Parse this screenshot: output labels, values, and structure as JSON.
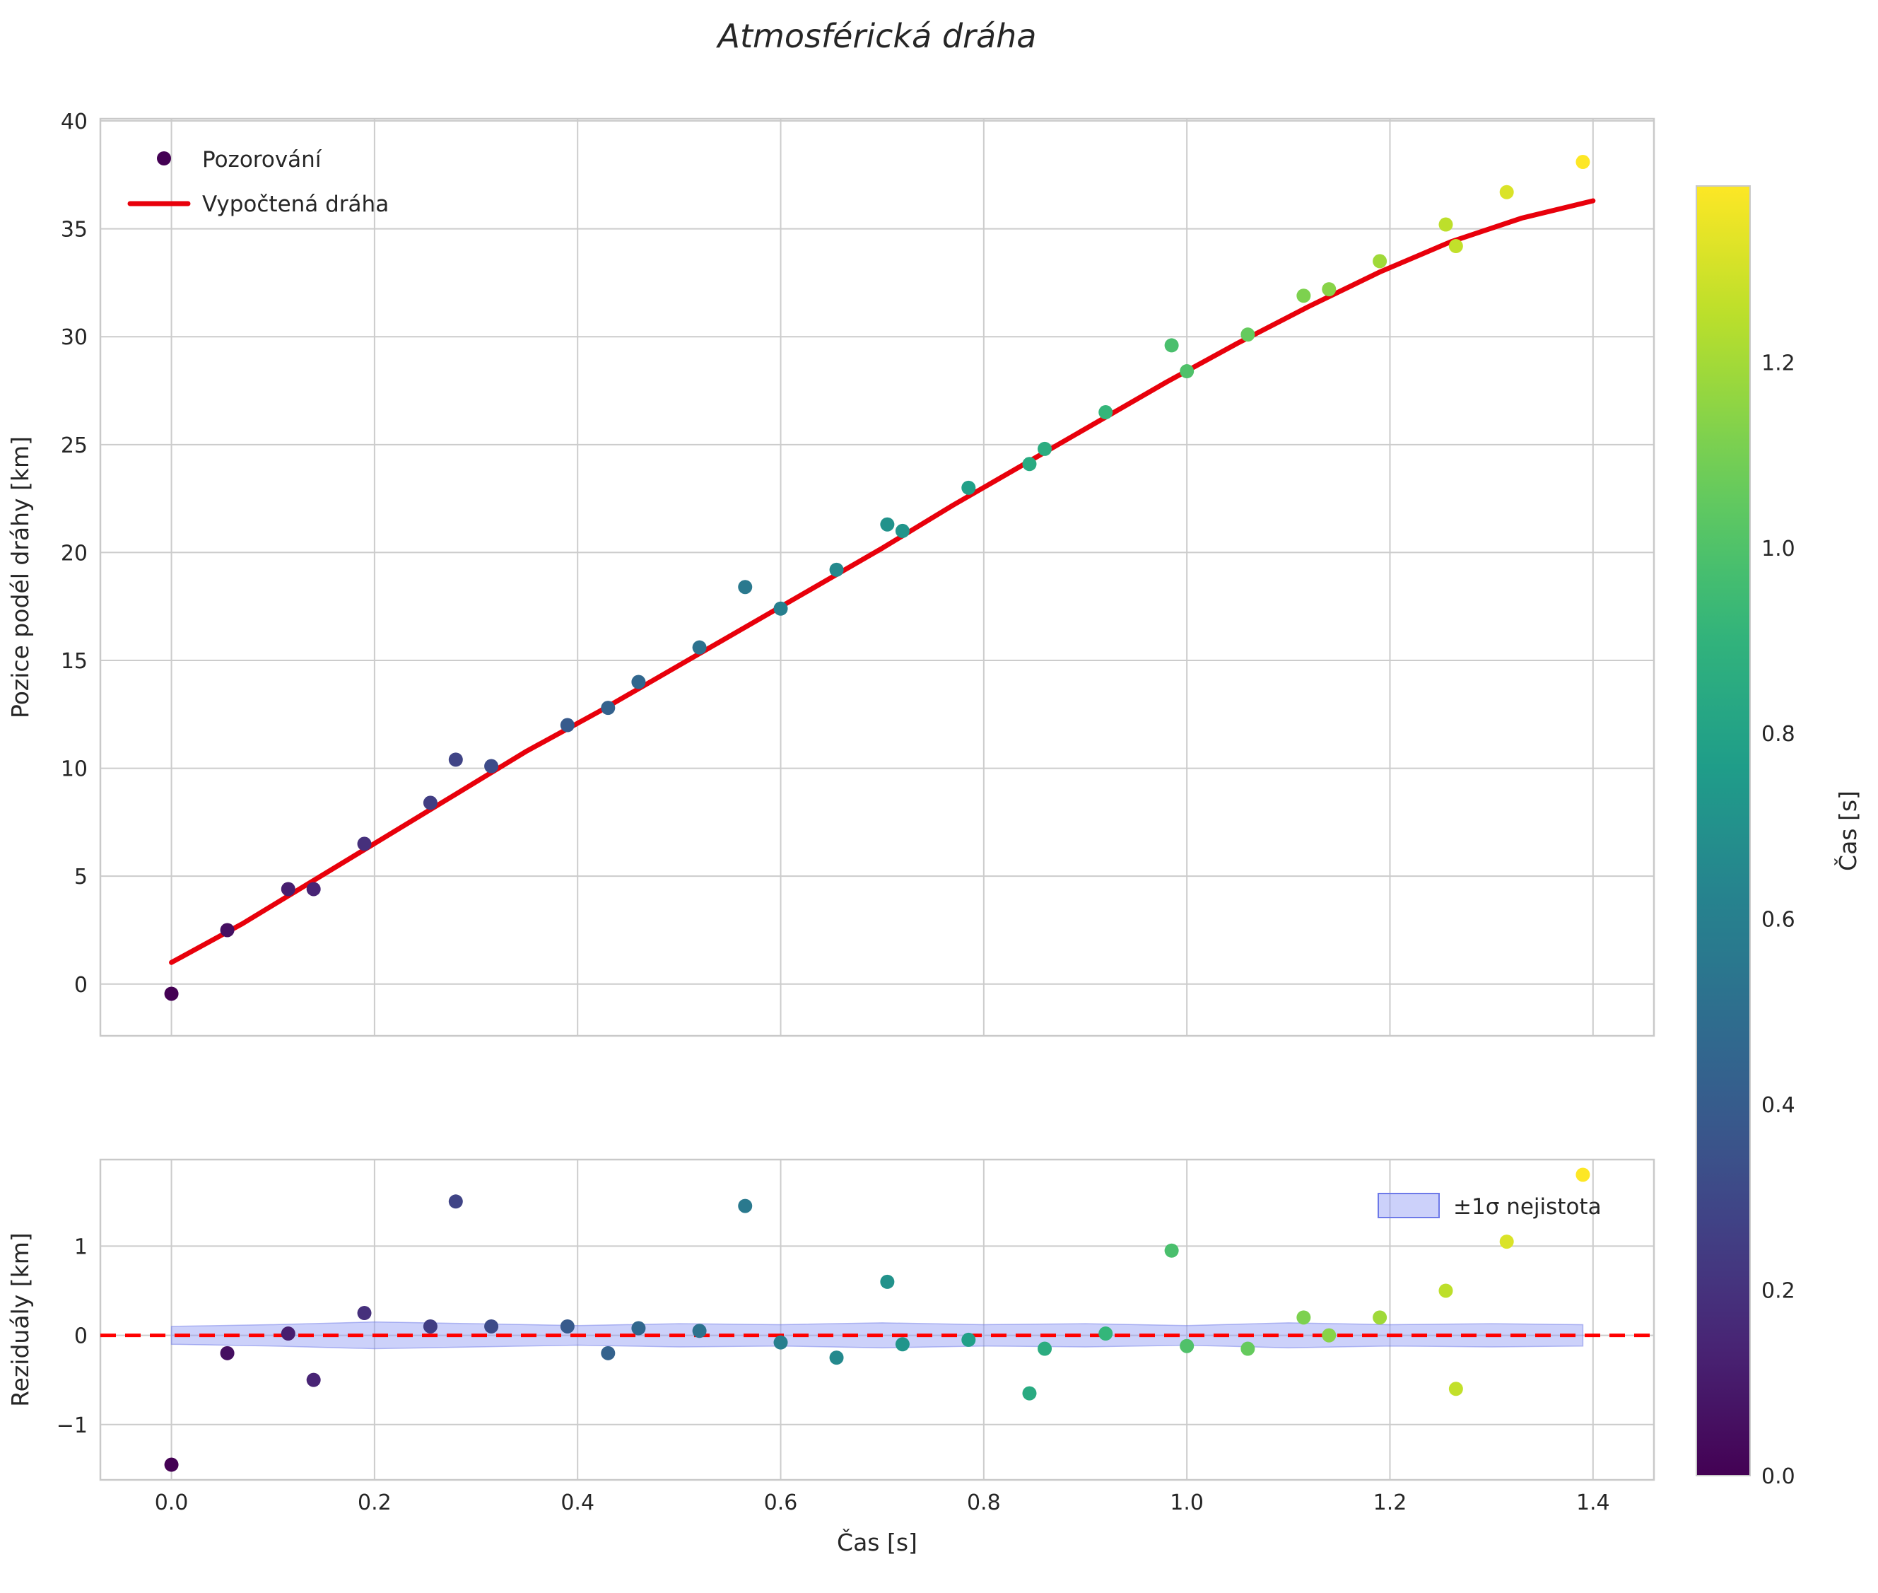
{
  "title": "Atmosférická dráha",
  "colors": {
    "fit_line": "#e8000b",
    "zero_line": "#ff0000",
    "grid": "#cccccc",
    "spine": "#c9c9c9",
    "band_fill": "#8e99f3",
    "band_edge": "#6d79e8",
    "legend_marker": "#440154",
    "text": "#262626"
  },
  "chart_data": [
    {
      "type": "scatter",
      "title": "Atmosférická dráha",
      "ylabel": "Pozice podél dráhy [km]",
      "xlim": [
        -0.07,
        1.46
      ],
      "ylim": [
        -2.4,
        40.1
      ],
      "xgrid_values": [
        0.0,
        0.2,
        0.4,
        0.6,
        0.8,
        1.0,
        1.2,
        1.4
      ],
      "ytick_values": [
        0,
        5,
        10,
        15,
        20,
        25,
        30,
        35,
        40
      ],
      "ytick_labels": [
        "0",
        "5",
        "10",
        "15",
        "20",
        "25",
        "30",
        "35",
        "40"
      ],
      "legend": [
        {
          "label": "Pozorování",
          "type": "marker"
        },
        {
          "label": "Vypočtená dráha",
          "type": "line"
        }
      ],
      "points": {
        "t": [
          0.0,
          0.055,
          0.115,
          0.14,
          0.19,
          0.255,
          0.28,
          0.315,
          0.39,
          0.43,
          0.46,
          0.52,
          0.565,
          0.6,
          0.655,
          0.705,
          0.72,
          0.785,
          0.845,
          0.86,
          0.92,
          0.985,
          1.0,
          1.06,
          1.115,
          1.14,
          1.19,
          1.255,
          1.265,
          1.315,
          1.39
        ],
        "y": [
          -0.45,
          2.5,
          4.4,
          4.4,
          6.5,
          8.4,
          10.4,
          10.1,
          12.0,
          12.8,
          14.0,
          15.6,
          18.4,
          17.4,
          19.2,
          21.3,
          21.0,
          23.0,
          24.1,
          24.8,
          26.5,
          29.6,
          28.4,
          30.1,
          31.9,
          32.2,
          33.5,
          35.2,
          34.2,
          36.7,
          38.1
        ]
      },
      "fit_line": {
        "x": [
          0.0,
          0.07,
          0.14,
          0.21,
          0.28,
          0.35,
          0.42,
          0.49,
          0.56,
          0.63,
          0.7,
          0.77,
          0.84,
          0.91,
          0.98,
          1.05,
          1.12,
          1.19,
          1.26,
          1.33,
          1.4
        ],
        "y": [
          1.0,
          2.8,
          4.8,
          6.8,
          8.8,
          10.8,
          12.6,
          14.5,
          16.4,
          18.3,
          20.2,
          22.2,
          24.1,
          26.0,
          27.9,
          29.7,
          31.4,
          33.0,
          34.4,
          35.5,
          36.3
        ]
      }
    },
    {
      "type": "scatter",
      "ylabel": "Reziduály [km]",
      "xlabel": "Čas [s]",
      "xlim": [
        -0.07,
        1.46
      ],
      "ylim": [
        -1.62,
        1.97
      ],
      "xtick_values": [
        0.0,
        0.2,
        0.4,
        0.6,
        0.8,
        1.0,
        1.2,
        1.4
      ],
      "xtick_labels": [
        "0.0",
        "0.2",
        "0.4",
        "0.6",
        "0.8",
        "1.0",
        "1.2",
        "1.4"
      ],
      "ytick_values": [
        -1,
        0,
        1
      ],
      "ytick_labels": [
        "−1",
        "0",
        "1"
      ],
      "legend": [
        {
          "label": "±1σ nejistota",
          "type": "band"
        }
      ],
      "points": {
        "t": [
          0.0,
          0.055,
          0.115,
          0.14,
          0.19,
          0.255,
          0.28,
          0.315,
          0.39,
          0.43,
          0.46,
          0.52,
          0.565,
          0.6,
          0.655,
          0.705,
          0.72,
          0.785,
          0.845,
          0.86,
          0.92,
          0.985,
          1.0,
          1.06,
          1.115,
          1.14,
          1.19,
          1.255,
          1.265,
          1.315,
          1.39
        ],
        "y": [
          -1.45,
          -0.2,
          0.02,
          -0.5,
          0.25,
          0.1,
          1.5,
          0.1,
          0.1,
          -0.2,
          0.08,
          0.05,
          1.45,
          -0.08,
          -0.25,
          0.6,
          -0.1,
          -0.05,
          -0.65,
          -0.15,
          0.02,
          0.95,
          -0.12,
          -0.15,
          0.2,
          0.0,
          0.2,
          0.5,
          -0.6,
          1.05,
          1.8
        ]
      },
      "band": {
        "x": [
          0.0,
          0.1,
          0.2,
          0.3,
          0.4,
          0.5,
          0.6,
          0.7,
          0.8,
          0.9,
          1.0,
          1.1,
          1.2,
          1.3,
          1.39
        ],
        "halfwidth": [
          0.1,
          0.12,
          0.15,
          0.13,
          0.11,
          0.13,
          0.12,
          0.14,
          0.12,
          0.13,
          0.11,
          0.14,
          0.12,
          0.13,
          0.12
        ]
      }
    }
  ],
  "colorbar": {
    "label": "Čas [s]",
    "vmin": 0.0,
    "vmax": 1.39,
    "tick_values": [
      0.0,
      0.2,
      0.4,
      0.6,
      0.8,
      1.0,
      1.2
    ],
    "tick_labels": [
      "0.0",
      "0.2",
      "0.4",
      "0.6",
      "0.8",
      "1.0",
      "1.2"
    ]
  }
}
